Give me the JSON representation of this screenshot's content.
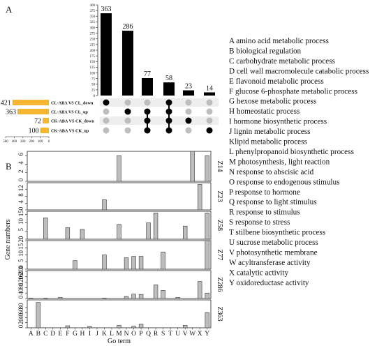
{
  "panel_labels": {
    "a": "A",
    "b": "B"
  },
  "go_legend": [
    "A amino acid metabolic process",
    "B biological regulation",
    "C carbohydrate metabolic process",
    "D cell wall macromolecule catabolic process",
    "E flavonoid metabolic process",
    "F glucose 6-phosphate metabolic process",
    "G hexose metabolic process",
    "H homeostatic process",
    "I hormone biosynthetic process",
    "J lignin metabolic process",
    "Klipid metabolic process",
    "L phenylpropanoid biosynthetic process",
    "M photosynthesis, light reaction",
    "N response to abscisic acid",
    "O response to endogenous stimulus",
    "P response to hormone",
    "Q response to light stimulus",
    "R response to stimulus",
    "S response to stress",
    "T stilbene biosynthetic process",
    "U sucrose metabolic process",
    "V photosynthetic membrane",
    "W acyltransferase activity",
    "X catalytic activity",
    "Y oxidoreductase activity"
  ],
  "colors": {
    "bar": "#000000",
    "set_bar": "#f5b731",
    "dot_on": "#000000",
    "dot_off": "#bdbdbd",
    "panel_bar": "#bdbdbd",
    "stripe": "#eeeeee"
  },
  "chart_data": [
    {
      "type": "bar",
      "title": "",
      "xlabel": "",
      "ylabel": "",
      "ylim": [
        0,
        400
      ],
      "yticks": [
        0,
        25,
        50,
        75,
        100,
        125,
        150,
        175,
        200,
        225,
        250,
        275,
        300,
        325,
        350,
        375,
        400
      ],
      "intersections": [
        {
          "value": 363,
          "members": [
            0
          ]
        },
        {
          "value": 286,
          "members": [
            1
          ]
        },
        {
          "value": 77,
          "members": [
            1,
            2,
            3
          ]
        },
        {
          "value": 58,
          "members": [
            0,
            1,
            2,
            3
          ]
        },
        {
          "value": 23,
          "members": [
            2
          ]
        },
        {
          "value": 14,
          "members": [
            3
          ]
        }
      ],
      "sets": [
        {
          "name": "CL-ABA VS CL_down",
          "size": 421
        },
        {
          "name": "CL-ABA VS CL_up",
          "size": 363
        },
        {
          "name": "CK-ABA VS CK_down",
          "size": 72
        },
        {
          "name": "CK-ABA VS CK_up",
          "size": 100
        }
      ],
      "set_axis_ticks": [
        500,
        400,
        300,
        200,
        100,
        0
      ]
    },
    {
      "type": "bar",
      "xlabel": "Go term",
      "ylabel": "Gene numbers",
      "categories": [
        "A",
        "B",
        "C",
        "D",
        "E",
        "F",
        "G",
        "H",
        "I",
        "J",
        "K",
        "L",
        "M",
        "N",
        "O",
        "P",
        "Q",
        "R",
        "S",
        "T",
        "U",
        "V",
        "W",
        "X",
        "Y"
      ],
      "panels": [
        {
          "name": "Z14",
          "ylim": [
            0,
            7
          ],
          "yticks": [
            0,
            2,
            4,
            6
          ],
          "values": [
            0,
            0,
            0,
            0,
            0,
            0,
            0,
            0,
            0,
            0,
            0,
            0,
            6,
            0,
            0,
            0,
            0,
            0,
            0,
            0,
            0,
            0,
            7,
            0,
            6
          ]
        },
        {
          "name": "Z23",
          "ylim": [
            0,
            16
          ],
          "yticks": [
            0,
            4,
            8,
            12
          ],
          "values": [
            0,
            0,
            0,
            0,
            0,
            0,
            0,
            0,
            0,
            0,
            6,
            0,
            0,
            0,
            0,
            0,
            0,
            0,
            0,
            0,
            0,
            0,
            0,
            15,
            0
          ]
        },
        {
          "name": "Z58",
          "ylim": [
            0,
            17
          ],
          "yticks": [
            0,
            5,
            10,
            15
          ],
          "values": [
            0,
            0,
            13,
            0,
            0,
            7,
            0,
            6,
            0,
            0,
            0,
            0,
            9,
            0,
            0,
            0,
            10,
            16,
            0,
            0,
            0,
            8,
            0,
            0,
            16
          ]
        },
        {
          "name": "Z77",
          "ylim": [
            0,
            20
          ],
          "yticks": [
            0,
            5,
            10,
            15,
            20
          ],
          "values": [
            0,
            0,
            0,
            0,
            0,
            0,
            6,
            0,
            0,
            0,
            10,
            0,
            0,
            8,
            9,
            9,
            0,
            0,
            12,
            0,
            0,
            0,
            0,
            0,
            20
          ]
        },
        {
          "name": "Z286",
          "ylim": [
            0,
            205
          ],
          "yticks": [
            0,
            40,
            80,
            120,
            160,
            200
          ],
          "values": [
            3,
            0,
            3,
            0,
            8,
            0,
            0,
            0,
            0,
            0,
            3,
            0,
            0,
            15,
            32,
            30,
            0,
            100,
            60,
            0,
            8,
            0,
            0,
            125,
            40
          ]
        },
        {
          "name": "Z363",
          "ylim": [
            0,
            110
          ],
          "yticks": [
            0,
            20,
            40,
            60,
            80
          ],
          "values": [
            0,
            100,
            0,
            0,
            0,
            8,
            0,
            0,
            5,
            0,
            0,
            0,
            10,
            0,
            6,
            14,
            0,
            0,
            0,
            0,
            0,
            10,
            0,
            0,
            60
          ]
        }
      ]
    }
  ]
}
